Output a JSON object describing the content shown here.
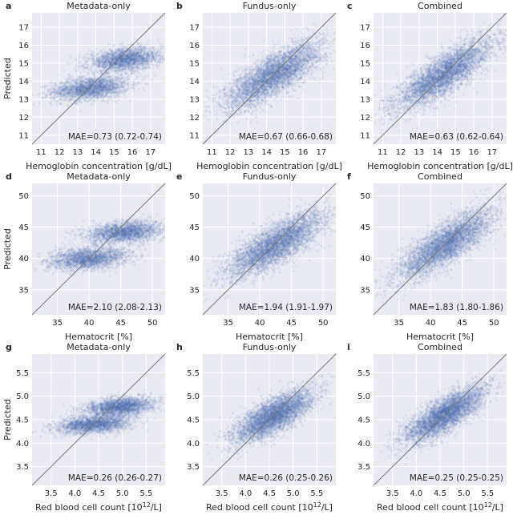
{
  "figure": {
    "background": "#ffffff",
    "panel_background": "#eaeaf2",
    "point_color": "#4c72b0",
    "diagonal_color": "#777777"
  },
  "chart_data": [
    {
      "letter": "a",
      "type": "scatter",
      "title": "Metadata-only",
      "xlabel": "Hemoglobin concentration [g/dL]",
      "ylabel": "Predicted",
      "xlim": [
        10.5,
        17.8
      ],
      "ylim": [
        10.5,
        17.8
      ],
      "xticks": [
        "11",
        "12",
        "13",
        "14",
        "15",
        "16",
        "17"
      ],
      "yticks": [
        "11",
        "12",
        "13",
        "14",
        "15",
        "16",
        "17"
      ],
      "tick_values": [
        11,
        12,
        13,
        14,
        15,
        16,
        17
      ],
      "mae": "MAE=0.73 (0.72-0.74)",
      "clusters": [
        {
          "x_mean": 13.7,
          "x_sd": 1.05,
          "y_mean": 13.6,
          "y_sd": 0.33,
          "rho": 0.3,
          "n": 2200
        },
        {
          "x_mean": 15.6,
          "x_sd": 1.0,
          "y_mean": 15.2,
          "y_sd": 0.33,
          "rho": 0.3,
          "n": 2200
        }
      ]
    },
    {
      "letter": "b",
      "type": "scatter",
      "title": "Fundus-only",
      "xlabel": "Hemoglobin concentration [g/dL]",
      "ylabel": "",
      "xlim": [
        10.5,
        17.8
      ],
      "ylim": [
        10.5,
        17.8
      ],
      "xticks": [
        "11",
        "12",
        "13",
        "14",
        "15",
        "16",
        "17"
      ],
      "yticks": [
        "11",
        "12",
        "13",
        "14",
        "15",
        "16",
        "17"
      ],
      "tick_values": [
        11,
        12,
        13,
        14,
        15,
        16,
        17
      ],
      "mae": "MAE=0.67 (0.66-0.68)",
      "clusters": [
        {
          "x_mean": 14.4,
          "x_sd": 1.35,
          "y_mean": 14.35,
          "y_sd": 0.95,
          "rho": 0.78,
          "n": 4400
        }
      ]
    },
    {
      "letter": "c",
      "type": "scatter",
      "title": "Combined",
      "xlabel": "Hemoglobin concentration [g/dL]",
      "ylabel": "",
      "xlim": [
        10.5,
        17.8
      ],
      "ylim": [
        10.5,
        17.8
      ],
      "xticks": [
        "11",
        "12",
        "13",
        "14",
        "15",
        "16",
        "17"
      ],
      "yticks": [
        "11",
        "12",
        "13",
        "14",
        "15",
        "16",
        "17"
      ],
      "tick_values": [
        11,
        12,
        13,
        14,
        15,
        16,
        17
      ],
      "mae": "MAE=0.63 (0.62-0.64)",
      "clusters": [
        {
          "x_mean": 14.4,
          "x_sd": 1.35,
          "y_mean": 14.4,
          "y_sd": 1.0,
          "rho": 0.82,
          "n": 4400
        }
      ]
    },
    {
      "letter": "d",
      "type": "scatter",
      "title": "Metadata-only",
      "xlabel": "Hematocrit [%]",
      "ylabel": "Predicted",
      "xlim": [
        31,
        52
      ],
      "ylim": [
        31,
        52
      ],
      "xticks": [
        "35",
        "40",
        "45",
        "50"
      ],
      "yticks": [
        "35",
        "40",
        "45",
        "50"
      ],
      "tick_values": [
        35,
        40,
        45,
        50
      ],
      "mae": "MAE=2.10 (2.08-2.13)",
      "clusters": [
        {
          "x_mean": 40.0,
          "x_sd": 3.2,
          "y_mean": 40.0,
          "y_sd": 0.9,
          "rho": 0.3,
          "n": 2200
        },
        {
          "x_mean": 45.5,
          "x_sd": 3.0,
          "y_mean": 44.2,
          "y_sd": 0.9,
          "rho": 0.3,
          "n": 2200
        }
      ]
    },
    {
      "letter": "e",
      "type": "scatter",
      "title": "Fundus-only",
      "xlabel": "Hematocrit [%]",
      "ylabel": "",
      "xlim": [
        31,
        52
      ],
      "ylim": [
        31,
        52
      ],
      "xticks": [
        "35",
        "40",
        "45",
        "50"
      ],
      "yticks": [
        "35",
        "40",
        "45",
        "50"
      ],
      "tick_values": [
        35,
        40,
        45,
        50
      ],
      "mae": "MAE=1.94 (1.91-1.97)",
      "clusters": [
        {
          "x_mean": 42.5,
          "x_sd": 3.8,
          "y_mean": 42.2,
          "y_sd": 2.6,
          "rho": 0.78,
          "n": 4400
        }
      ]
    },
    {
      "letter": "f",
      "type": "scatter",
      "title": "Combined",
      "xlabel": "Hematocrit [%]",
      "ylabel": "",
      "xlim": [
        31,
        52
      ],
      "ylim": [
        31,
        52
      ],
      "xticks": [
        "35",
        "40",
        "45",
        "50"
      ],
      "yticks": [
        "35",
        "40",
        "45",
        "50"
      ],
      "tick_values": [
        35,
        40,
        45,
        50
      ],
      "mae": "MAE=1.83 (1.80-1.86)",
      "clusters": [
        {
          "x_mean": 42.5,
          "x_sd": 3.8,
          "y_mean": 42.3,
          "y_sd": 2.8,
          "rho": 0.8,
          "n": 4400
        }
      ]
    },
    {
      "letter": "g",
      "type": "scatter",
      "title": "Metadata-only",
      "xlabel": "Red blood cell count [10",
      "xlabel_sup": "12",
      "xlabel_tail": "/L]",
      "ylabel": "Predicted",
      "xlim": [
        3.1,
        5.9
      ],
      "ylim": [
        3.1,
        5.9
      ],
      "xticks": [
        "3.5",
        "4.0",
        "4.5",
        "5.0",
        "5.5"
      ],
      "yticks": [
        "3.5",
        "4.0",
        "4.5",
        "5.0",
        "5.5"
      ],
      "tick_values": [
        3.5,
        4.0,
        4.5,
        5.0,
        5.5
      ],
      "mae": "MAE=0.26 (0.26-0.27)",
      "clusters": [
        {
          "x_mean": 4.4,
          "x_sd": 0.4,
          "y_mean": 4.4,
          "y_sd": 0.1,
          "rho": 0.3,
          "n": 2200
        },
        {
          "x_mean": 4.95,
          "x_sd": 0.35,
          "y_mean": 4.78,
          "y_sd": 0.1,
          "rho": 0.3,
          "n": 2200
        }
      ]
    },
    {
      "letter": "h",
      "type": "scatter",
      "title": "Fundus-only",
      "xlabel": "Red blood cell count [10",
      "xlabel_sup": "12",
      "xlabel_tail": "/L]",
      "ylabel": "",
      "xlim": [
        3.1,
        5.9
      ],
      "ylim": [
        3.1,
        5.9
      ],
      "xticks": [
        "3.5",
        "4.0",
        "4.5",
        "5.0",
        "5.5"
      ],
      "yticks": [
        "3.5",
        "4.0",
        "4.5",
        "5.0",
        "5.5"
      ],
      "tick_values": [
        3.5,
        4.0,
        4.5,
        5.0,
        5.5
      ],
      "mae": "MAE=0.26 (0.25-0.26)",
      "clusters": [
        {
          "x_mean": 4.6,
          "x_sd": 0.42,
          "y_mean": 4.58,
          "y_sd": 0.28,
          "rho": 0.75,
          "n": 4400
        }
      ]
    },
    {
      "letter": "i",
      "type": "scatter",
      "title": "Combined",
      "xlabel": "Red blood cell count [10",
      "xlabel_sup": "12",
      "xlabel_tail": "/L]",
      "ylabel": "",
      "xlim": [
        3.1,
        5.9
      ],
      "ylim": [
        3.1,
        5.9
      ],
      "xticks": [
        "3.5",
        "4.0",
        "4.5",
        "5.0",
        "5.5"
      ],
      "yticks": [
        "3.5",
        "4.0",
        "4.5",
        "5.0",
        "5.5"
      ],
      "tick_values": [
        3.5,
        4.0,
        4.5,
        5.0,
        5.5
      ],
      "mae": "MAE=0.25 (0.25-0.25)",
      "clusters": [
        {
          "x_mean": 4.6,
          "x_sd": 0.42,
          "y_mean": 4.6,
          "y_sd": 0.3,
          "rho": 0.78,
          "n": 4400
        }
      ]
    }
  ]
}
